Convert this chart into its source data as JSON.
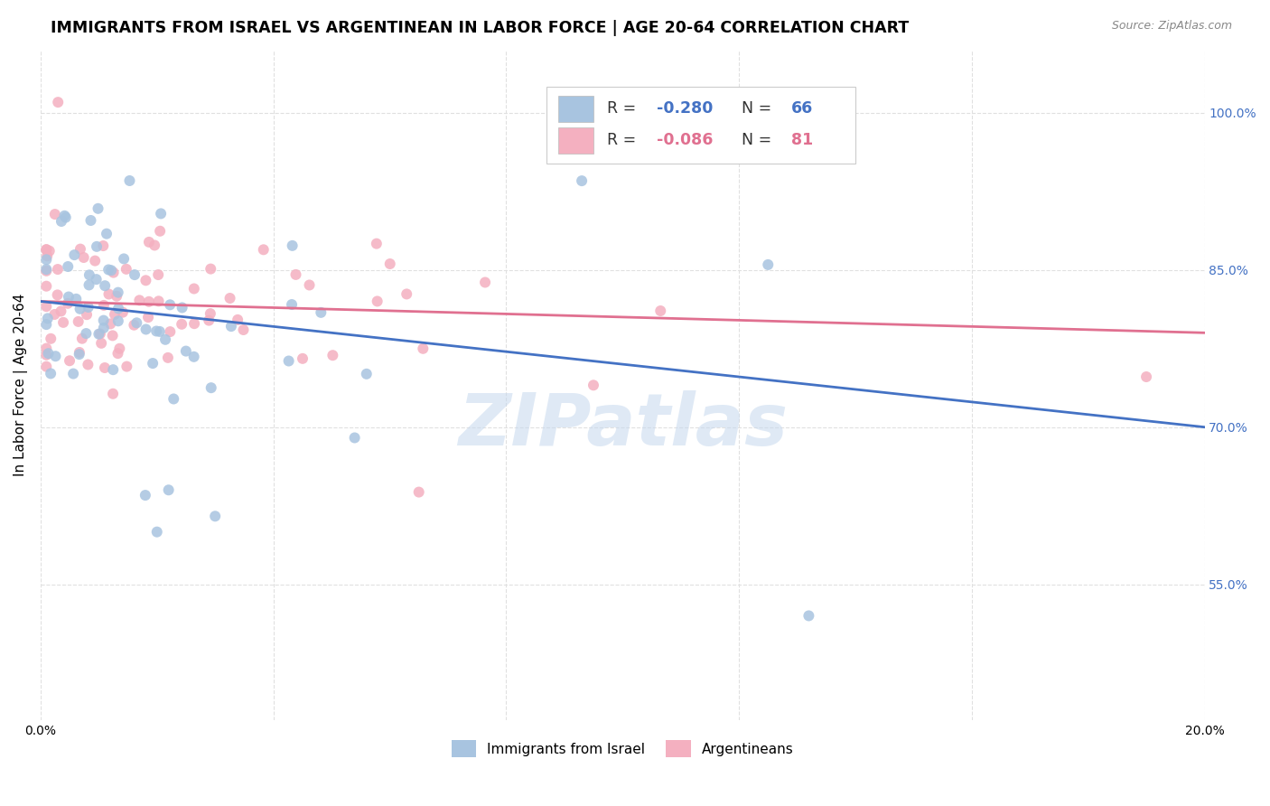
{
  "title": "IMMIGRANTS FROM ISRAEL VS ARGENTINEAN IN LABOR FORCE | AGE 20-64 CORRELATION CHART",
  "source": "Source: ZipAtlas.com",
  "ylabel": "In Labor Force | Age 20-64",
  "xlim": [
    0.0,
    0.2
  ],
  "ylim": [
    0.42,
    1.06
  ],
  "xticks": [
    0.0,
    0.04,
    0.08,
    0.12,
    0.16,
    0.2
  ],
  "xticklabels": [
    "0.0%",
    "",
    "",
    "",
    "",
    "20.0%"
  ],
  "yticks_right": [
    0.55,
    0.7,
    0.85,
    1.0
  ],
  "yticklabels_right": [
    "55.0%",
    "70.0%",
    "85.0%",
    "100.0%"
  ],
  "israel_R": "-0.280",
  "israel_N": "66",
  "argentin_R": "-0.086",
  "argentin_N": "81",
  "israel_color": "#a8c4e0",
  "israel_line_color": "#4472c4",
  "argentin_color": "#f4b0c0",
  "argentin_line_color": "#e07090",
  "r_n_color_blue": "#4472c4",
  "r_n_color_pink": "#e07090",
  "legend_label_israel": "Immigrants from Israel",
  "legend_label_argentin": "Argentineans",
  "watermark": "ZIPatlas",
  "grid_color": "#e0e0e0",
  "background_color": "#ffffff",
  "israel_line_x0": 0.0,
  "israel_line_y0": 0.82,
  "israel_line_x1": 0.2,
  "israel_line_y1": 0.7,
  "argentin_line_x0": 0.0,
  "argentin_line_y0": 0.82,
  "argentin_line_x1": 0.2,
  "argentin_line_y1": 0.79
}
